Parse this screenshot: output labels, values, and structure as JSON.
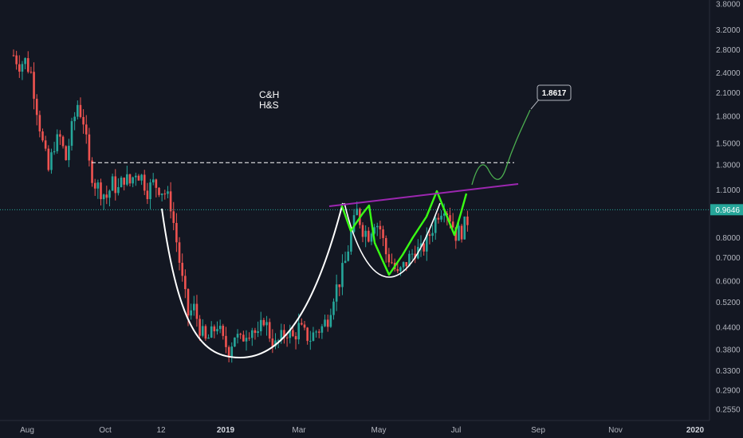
{
  "colors": {
    "background": "#131722",
    "up_candle": "#26a69a",
    "down_candle": "#ef5350",
    "neckline_dashed": "#ffffff",
    "trendline": "#9c27b0",
    "pattern_white": "#ffffff",
    "pattern_green": "#39ff14",
    "forecast_green": "#4caf50",
    "current_price_line": "#26a69a"
  },
  "annotations": {
    "pattern_line1": "C&H",
    "pattern_line2": "H&S",
    "target_label": "1.8617"
  },
  "current_price": {
    "label": "0.9646",
    "value": 0.9646
  },
  "chart_data": {
    "type": "candlestick",
    "title": "",
    "y_scale": "log",
    "y_ticks": [
      "3.8000",
      "3.2000",
      "2.8000",
      "2.4000",
      "2.1000",
      "1.8000",
      "1.5000",
      "1.3000",
      "1.1000",
      "0.9646",
      "0.8000",
      "0.7000",
      "0.6000",
      "0.5200",
      "0.4400",
      "0.3800",
      "0.3300",
      "0.2900",
      "0.2550"
    ],
    "y_tick_values": [
      3.8,
      3.2,
      2.8,
      2.4,
      2.1,
      1.8,
      1.5,
      1.3,
      1.1,
      0.9646,
      0.8,
      0.7,
      0.6,
      0.52,
      0.44,
      0.38,
      0.33,
      0.29,
      0.255
    ],
    "x_ticks": [
      "Aug",
      "Oct",
      "12",
      "2019",
      "Mar",
      "May",
      "Jul",
      "Sep",
      "Nov",
      "2020"
    ],
    "x_tick_bold": [
      "2019",
      "2020"
    ],
    "resistance_level": 1.32,
    "target_value": 1.8617,
    "price_path": [
      [
        0,
        2.7
      ],
      [
        2,
        2.55
      ],
      [
        4,
        2.6
      ],
      [
        6,
        2.4
      ],
      [
        8,
        1.9
      ],
      [
        10,
        1.5
      ],
      [
        12,
        1.25
      ],
      [
        14,
        1.5
      ],
      [
        16,
        1.55
      ],
      [
        18,
        1.35
      ],
      [
        20,
        1.65
      ],
      [
        22,
        1.95
      ],
      [
        24,
        1.75
      ],
      [
        26,
        1.3
      ],
      [
        28,
        1.15
      ],
      [
        30,
        1.1
      ],
      [
        32,
        1.05
      ],
      [
        34,
        1.15
      ],
      [
        36,
        1.1
      ],
      [
        38,
        1.2
      ],
      [
        40,
        1.15
      ],
      [
        42,
        1.25
      ],
      [
        44,
        1.2
      ],
      [
        46,
        1.1
      ],
      [
        48,
        1.15
      ],
      [
        50,
        1.12
      ],
      [
        52,
        1.08
      ],
      [
        54,
        1.0
      ],
      [
        56,
        0.78
      ],
      [
        58,
        0.6
      ],
      [
        60,
        0.48
      ],
      [
        62,
        0.5
      ],
      [
        64,
        0.44
      ],
      [
        66,
        0.4
      ],
      [
        68,
        0.42
      ],
      [
        70,
        0.45
      ],
      [
        72,
        0.4
      ],
      [
        74,
        0.38
      ],
      [
        76,
        0.42
      ],
      [
        78,
        0.4
      ],
      [
        80,
        0.43
      ],
      [
        82,
        0.44
      ],
      [
        84,
        0.41
      ],
      [
        86,
        0.47
      ],
      [
        88,
        0.42
      ],
      [
        90,
        0.39
      ],
      [
        92,
        0.41
      ],
      [
        94,
        0.43
      ],
      [
        96,
        0.41
      ],
      [
        98,
        0.44
      ],
      [
        100,
        0.42
      ],
      [
        102,
        0.41
      ],
      [
        104,
        0.43
      ],
      [
        106,
        0.44
      ],
      [
        108,
        0.47
      ],
      [
        110,
        0.55
      ],
      [
        112,
        0.6
      ],
      [
        114,
        0.68
      ],
      [
        116,
        0.82
      ],
      [
        118,
        0.95
      ],
      [
        120,
        0.85
      ],
      [
        122,
        0.82
      ],
      [
        124,
        0.9
      ],
      [
        126,
        0.85
      ],
      [
        128,
        0.72
      ],
      [
        130,
        0.68
      ],
      [
        132,
        0.62
      ],
      [
        134,
        0.66
      ],
      [
        136,
        0.7
      ],
      [
        138,
        0.74
      ],
      [
        140,
        0.73
      ],
      [
        142,
        0.78
      ],
      [
        144,
        0.86
      ],
      [
        146,
        0.95
      ],
      [
        148,
        1.0
      ],
      [
        150,
        0.92
      ],
      [
        152,
        0.82
      ],
      [
        154,
        0.84
      ],
      [
        156,
        0.9
      ]
    ]
  }
}
